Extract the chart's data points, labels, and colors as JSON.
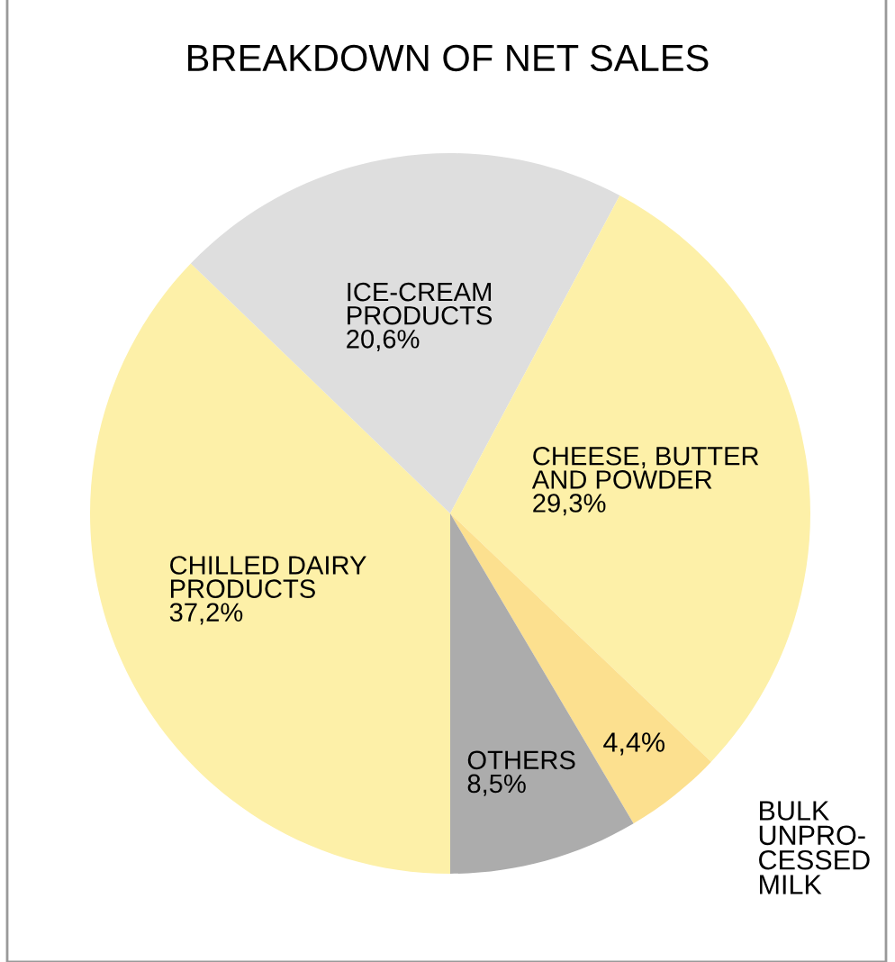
{
  "chart_data": {
    "type": "pie",
    "title": "BREAKDOWN OF NET SALES",
    "categories": [
      "CHILLED DAIRY\nPRODUCTS",
      "ICE-CREAM\nPRODUCTS",
      "CHEESE, BUTTER\nAND POWDER",
      "BULK\nUNPRO-\nCESSED\nMILK",
      "OTHERS"
    ],
    "values": [
      37.2,
      20.6,
      29.3,
      4.4,
      8.5
    ],
    "value_labels": [
      "37,2%",
      "20,6%",
      "29,3%",
      "4,4%",
      "8,5%"
    ],
    "colors": [
      "#fdf0a8",
      "#dedede",
      "#fdf0a8",
      "#fce08f",
      "#acacac"
    ]
  }
}
